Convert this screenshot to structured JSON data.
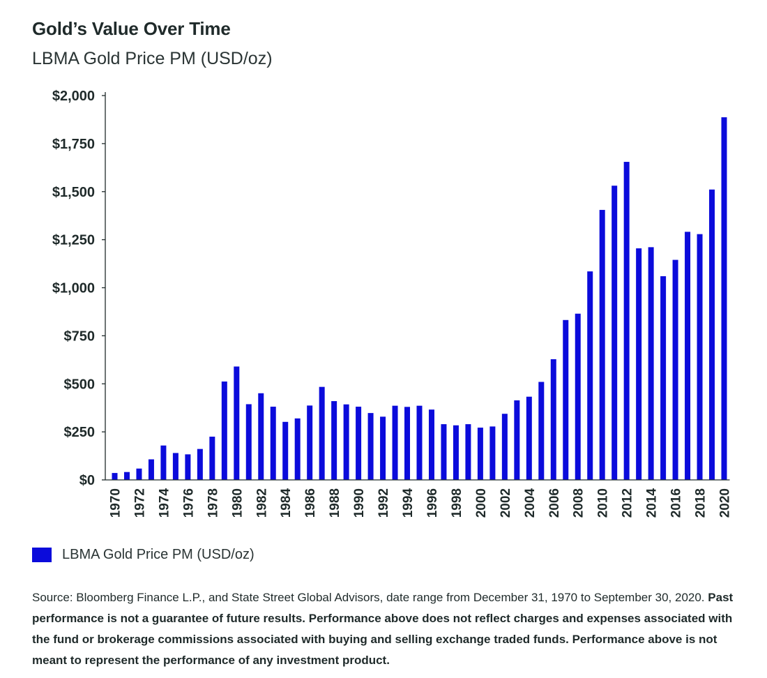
{
  "title": "Gold’s Value Over Time",
  "subtitle": "LBMA Gold Price PM (USD/oz)",
  "legend": {
    "label": "LBMA Gold Price PM (USD/oz)"
  },
  "source": {
    "plain": "Source: Bloomberg Finance L.P., and State Street Global Advisors, date range from December 31, 1970 to September 30, 2020.",
    "bold": "Past performance is not a guarantee of future results. Performance above does not reflect charges and expenses associated with the fund or brokerage commissions associated with buying and selling exchange traded funds. Performance above is not meant to represent the performance of any investment product."
  },
  "colors": {
    "bar": "#0b0bdb",
    "axis": "#1f2a2a",
    "text": "#1f2a2a"
  },
  "chart_data": {
    "type": "bar",
    "title": "Gold’s Value Over Time",
    "subtitle": "LBMA Gold Price PM (USD/oz)",
    "xlabel": "",
    "ylabel": "",
    "ylim": [
      0,
      2000
    ],
    "yticks": [
      0,
      250,
      500,
      750,
      1000,
      1250,
      1500,
      1750,
      2000
    ],
    "ytick_labels": [
      "$0",
      "$250",
      "$500",
      "$750",
      "$1,000",
      "$1,250",
      "$1,500",
      "$1,750",
      "$2,000"
    ],
    "grid": false,
    "legend_position": "bottom-left",
    "categories": [
      "1970",
      "1971",
      "1972",
      "1973",
      "1974",
      "1975",
      "1976",
      "1977",
      "1978",
      "1979",
      "1980",
      "1981",
      "1982",
      "1983",
      "1984",
      "1985",
      "1986",
      "1987",
      "1988",
      "1989",
      "1990",
      "1991",
      "1992",
      "1993",
      "1994",
      "1995",
      "1996",
      "1997",
      "1998",
      "1999",
      "2000",
      "2001",
      "2002",
      "2003",
      "2004",
      "2005",
      "2006",
      "2007",
      "2008",
      "2009",
      "2010",
      "2011",
      "2012",
      "2013",
      "2014",
      "2015",
      "2016",
      "2017",
      "2018",
      "2019",
      "2020"
    ],
    "xtick_labels": [
      "1970",
      "",
      "1972",
      "",
      "1974",
      "",
      "1976",
      "",
      "1978",
      "",
      "1980",
      "",
      "1982",
      "",
      "1984",
      "",
      "1986",
      "",
      "1988",
      "",
      "1990",
      "",
      "1992",
      "",
      "1994",
      "",
      "1996",
      "",
      "1998",
      "",
      "2000",
      "",
      "2002",
      "",
      "2004",
      "",
      "2006",
      "",
      "2008",
      "",
      "2010",
      "",
      "2012",
      "",
      "2014",
      "",
      "2016",
      "",
      "2018",
      "",
      "2020"
    ],
    "series": [
      {
        "name": "LBMA Gold Price PM (USD/oz)",
        "values": [
          36,
          41,
          59,
          107,
          179,
          140,
          133,
          161,
          225,
          512,
          590,
          394,
          451,
          381,
          302,
          320,
          387,
          484,
          410,
          393,
          381,
          348,
          329,
          386,
          380,
          386,
          366,
          290,
          284,
          290,
          272,
          278,
          344,
          414,
          433,
          510,
          628,
          832,
          865,
          1085,
          1405,
          1531,
          1655,
          1205,
          1211,
          1060,
          1145,
          1291,
          1279,
          1511,
          1887
        ]
      }
    ]
  }
}
